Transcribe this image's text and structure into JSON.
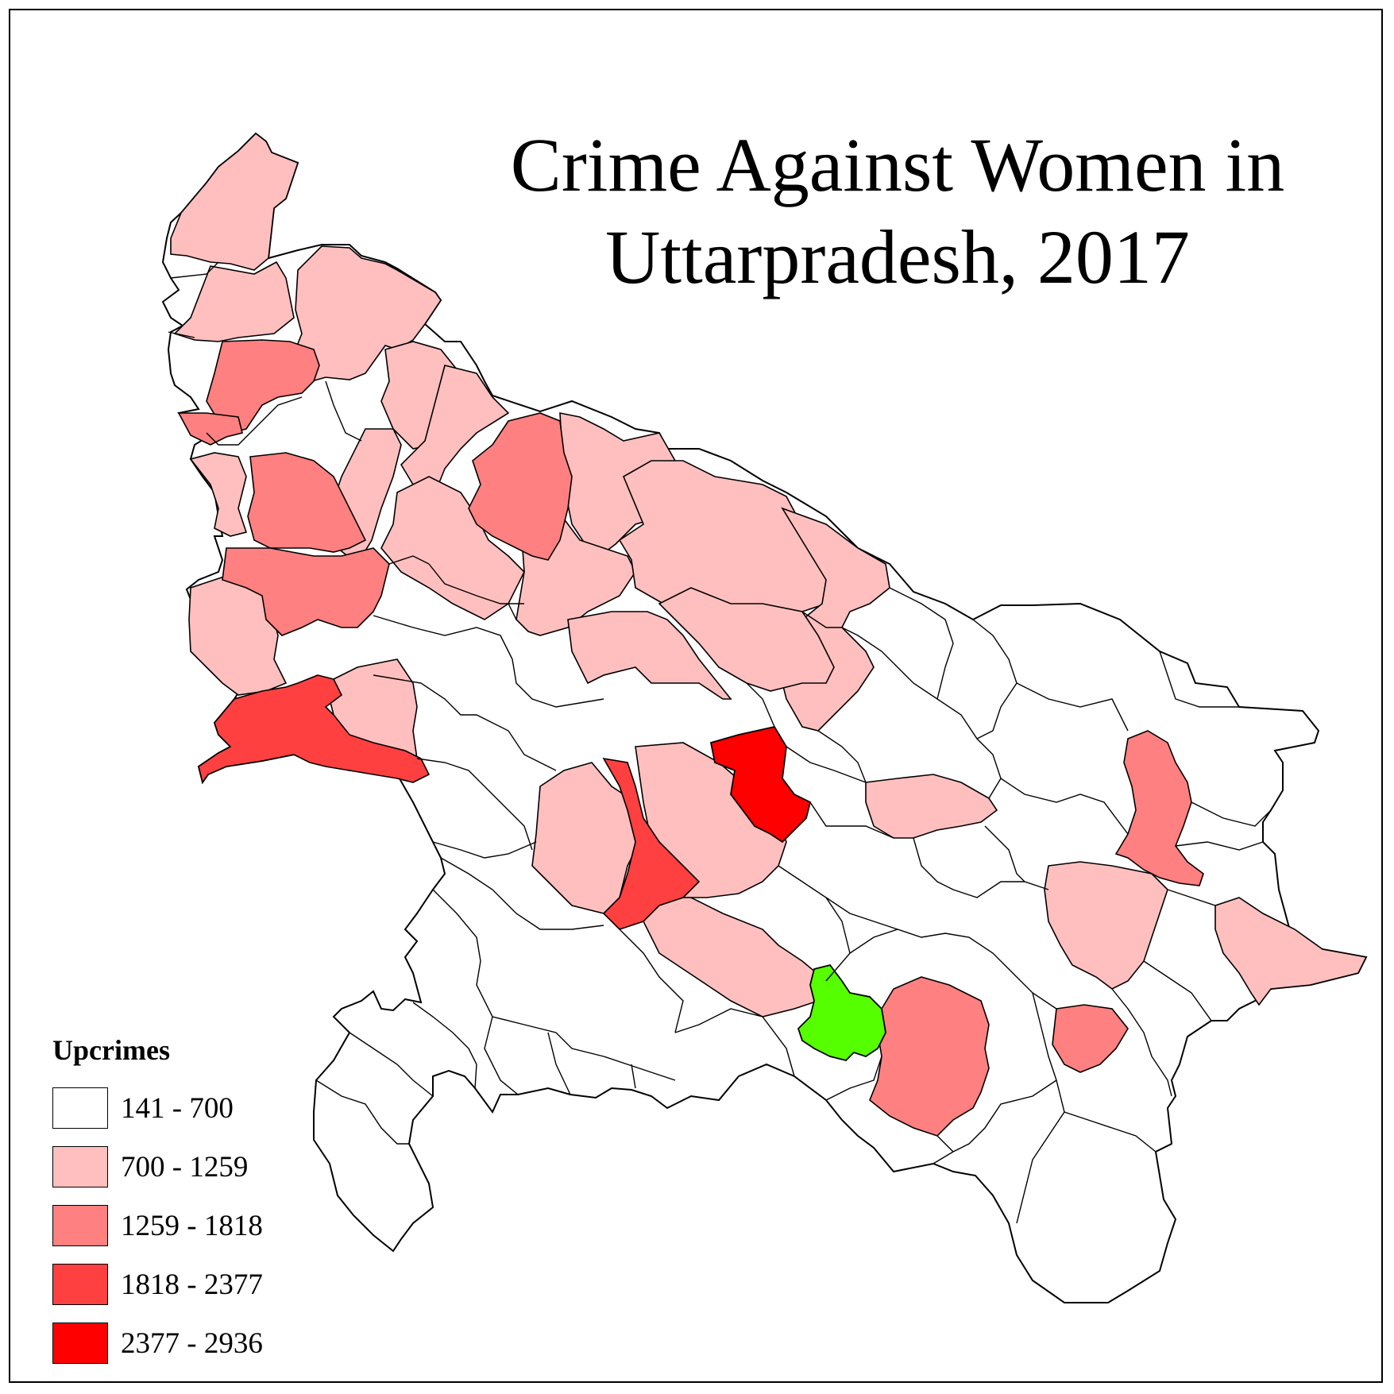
{
  "map": {
    "title_line1": "Crime Against Women in",
    "title_line2": "Uttarpradesh, 2017",
    "legend": {
      "title": "Upcrimes",
      "classes": [
        {
          "label": "141 - 700",
          "color": "#ffffff"
        },
        {
          "label": "700 - 1259",
          "color": "#ffbfbf"
        },
        {
          "label": "1259 - 1818",
          "color": "#ff8080"
        },
        {
          "label": "1818 - 2377",
          "color": "#ff4040"
        },
        {
          "label": "2377 - 2936",
          "color": "#ff0000"
        }
      ]
    },
    "highlight_color": "#55ff00",
    "boundary_color": "#000000"
  }
}
